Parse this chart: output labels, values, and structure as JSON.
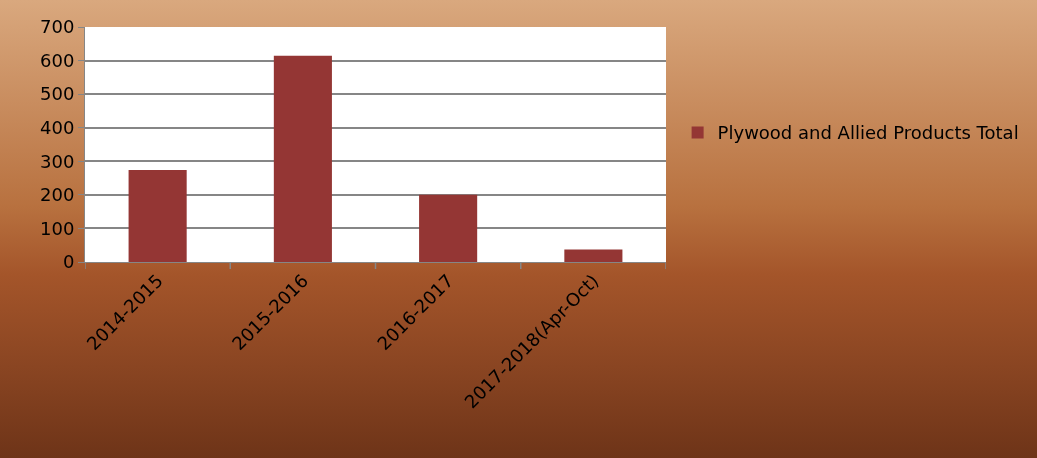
{
  "chart_data": {
    "type": "bar",
    "categories": [
      "2014-2015",
      "2015-2016",
      "2016-2017",
      "2017-2018(Apr-Oct)"
    ],
    "series": [
      {
        "name": "Plywood and Allied Products Total",
        "color": "#943634",
        "values": [
          274,
          614,
          200,
          37
        ]
      }
    ],
    "ylim": [
      0,
      700
    ],
    "yticks": [
      0,
      100,
      200,
      300,
      400,
      500,
      600,
      700
    ],
    "grid": "y",
    "legend": "right"
  }
}
